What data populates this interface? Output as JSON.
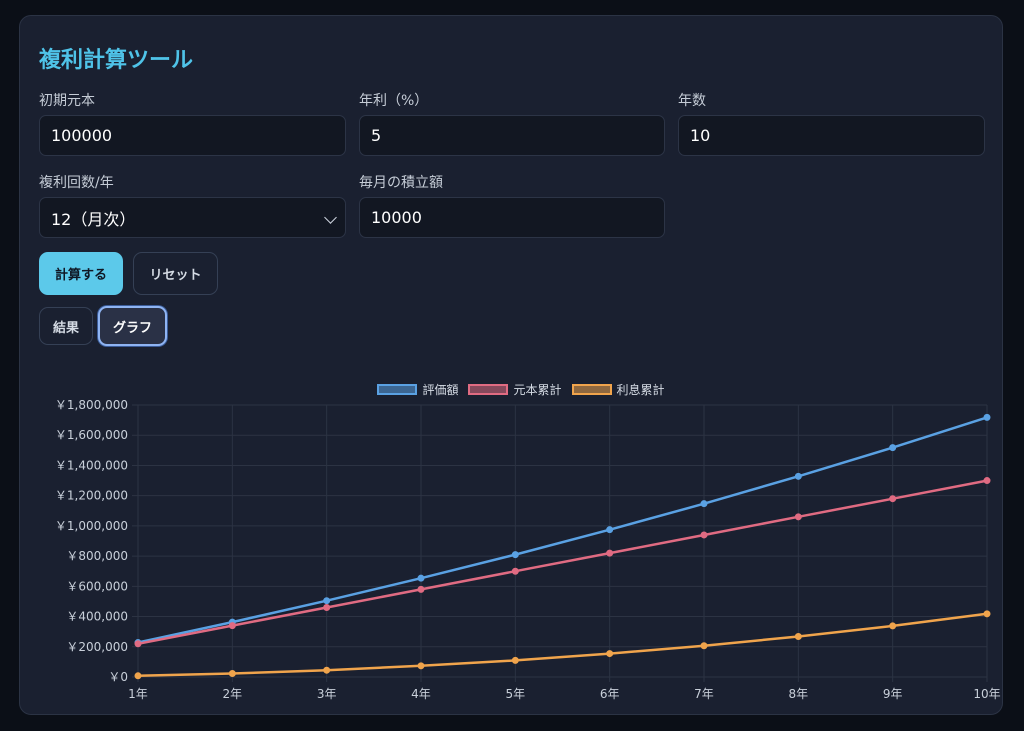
{
  "title": "複利計算ツール",
  "fields": {
    "principal": {
      "label": "初期元本",
      "value": "100000"
    },
    "rate": {
      "label": "年利（%）",
      "value": "5"
    },
    "years": {
      "label": "年数",
      "value": "10"
    },
    "compounding": {
      "label": "複利回数/年",
      "value": "12（月次）"
    },
    "monthly": {
      "label": "毎月の積立額",
      "value": "10000"
    }
  },
  "buttons": {
    "calculate": "計算する",
    "reset": "リセット"
  },
  "tabs": {
    "results": "結果",
    "graph": "グラフ"
  },
  "colors": {
    "valuation": "#5aa1e3",
    "principal": "#e06b82",
    "interest": "#f0a44c",
    "accent": "#5cc9ea"
  },
  "chart_data": {
    "type": "line",
    "categories": [
      "1年",
      "2年",
      "3年",
      "4年",
      "5年",
      "6年",
      "7年",
      "8年",
      "9年",
      "10年"
    ],
    "ylim": [
      0,
      1800000
    ],
    "yticks": [
      "￥0",
      "￥200,000",
      "￥400,000",
      "￥600,000",
      "￥800,000",
      "￥1,000,000",
      "￥1,200,000",
      "￥1,400,000",
      "￥1,600,000",
      "￥1,800,000"
    ],
    "grid": true,
    "legend": "top-center",
    "series": [
      {
        "name": "評価額",
        "values": [
          228000,
          363000,
          505000,
          654000,
          810000,
          975000,
          1147000,
          1328000,
          1518000,
          1718000
        ]
      },
      {
        "name": "元本累計",
        "values": [
          220000,
          340000,
          460000,
          580000,
          700000,
          820000,
          940000,
          1060000,
          1180000,
          1300000
        ]
      },
      {
        "name": "利息累計",
        "values": [
          8000,
          23000,
          45000,
          74000,
          110000,
          155000,
          207000,
          268000,
          338000,
          418000
        ]
      }
    ]
  }
}
